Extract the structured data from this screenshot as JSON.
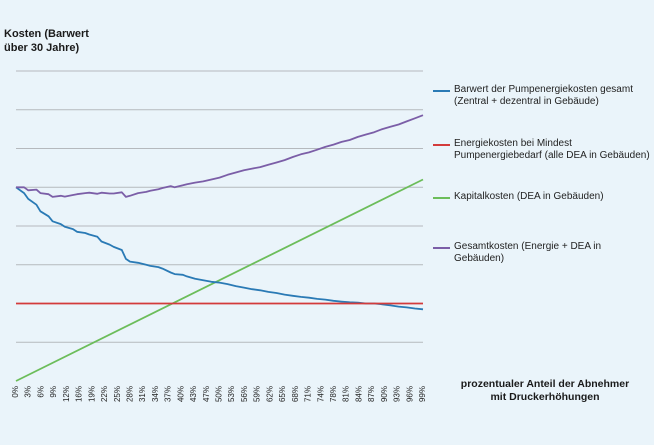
{
  "chart_data": {
    "type": "line",
    "ylabel": "Kosten (Barwert\nüber 30 Jahre)",
    "xlabel": "prozentualer Anteil der Abnehmer\nmit Druckerhöhungen",
    "xlim": [
      0,
      100
    ],
    "ylim": [
      0,
      8
    ],
    "grid": true,
    "legend_position": "right",
    "tick_labels": [
      "0%",
      "3%",
      "6%",
      "9%",
      "12%",
      "16%",
      "19%",
      "22%",
      "25%",
      "28%",
      "31%",
      "34%",
      "37%",
      "40%",
      "43%",
      "47%",
      "50%",
      "53%",
      "56%",
      "59%",
      "62%",
      "65%",
      "68%",
      "71%",
      "74%",
      "78%",
      "81%",
      "84%",
      "87%",
      "90%",
      "93%",
      "96%",
      "99%"
    ],
    "series": [
      {
        "name": "Barwert der Pumpenergiekosten gesamt\n(Zentral + dezentral in Gebäude)",
        "color": "#2a7ab5",
        "x": [
          0,
          2,
          3,
          5,
          6,
          8,
          9,
          11,
          12,
          14,
          15,
          17,
          18,
          20,
          21,
          23,
          24,
          26,
          27,
          28,
          30,
          32,
          33,
          35,
          36,
          38,
          39,
          41,
          42,
          44,
          46,
          48,
          50,
          52,
          54,
          56,
          58,
          60,
          62,
          64,
          66,
          68,
          70,
          72,
          74,
          76,
          78,
          80,
          82,
          84,
          86,
          88,
          90,
          92,
          94,
          96,
          98,
          100
        ],
        "values": [
          5.0,
          4.85,
          4.7,
          4.55,
          4.38,
          4.25,
          4.12,
          4.05,
          3.98,
          3.92,
          3.85,
          3.82,
          3.78,
          3.72,
          3.6,
          3.52,
          3.46,
          3.38,
          3.15,
          3.08,
          3.05,
          3.0,
          2.97,
          2.94,
          2.9,
          2.8,
          2.76,
          2.74,
          2.7,
          2.64,
          2.6,
          2.56,
          2.54,
          2.5,
          2.45,
          2.41,
          2.37,
          2.34,
          2.3,
          2.27,
          2.23,
          2.2,
          2.17,
          2.15,
          2.12,
          2.1,
          2.07,
          2.05,
          2.03,
          2.02,
          2.0,
          2.0,
          1.98,
          1.95,
          1.92,
          1.9,
          1.87,
          1.85
        ]
      },
      {
        "name": "Energiekosten bei Mindest\nPumpenergiebedarf (alle DEA in Gebäuden)",
        "color": "#d33b3b",
        "x": [
          0,
          100
        ],
        "values": [
          2.0,
          2.0
        ]
      },
      {
        "name": "Kapitalkosten (DEA in Gebäuden)",
        "color": "#6cbd5a",
        "x": [
          0,
          100
        ],
        "values": [
          0.0,
          5.2
        ]
      },
      {
        "name": "Gesamtkosten (Energie + DEA in Gebäuden)",
        "color": "#7b5ea7",
        "x": [
          0,
          2,
          3,
          5,
          6,
          8,
          9,
          11,
          12,
          14,
          15,
          17,
          18,
          20,
          21,
          23,
          24,
          26,
          27,
          28,
          30,
          32,
          33,
          35,
          36,
          38,
          39,
          41,
          42,
          44,
          46,
          48,
          50,
          52,
          54,
          56,
          58,
          60,
          62,
          64,
          66,
          68,
          70,
          72,
          74,
          76,
          78,
          80,
          82,
          84,
          86,
          88,
          90,
          92,
          94,
          96,
          98,
          100
        ],
        "values": [
          5.0,
          5.0,
          4.92,
          4.94,
          4.85,
          4.82,
          4.75,
          4.78,
          4.76,
          4.8,
          4.82,
          4.85,
          4.86,
          4.83,
          4.86,
          4.84,
          4.84,
          4.87,
          4.75,
          4.78,
          4.85,
          4.88,
          4.91,
          4.95,
          4.98,
          5.03,
          5.0,
          5.05,
          5.08,
          5.12,
          5.15,
          5.2,
          5.25,
          5.32,
          5.38,
          5.44,
          5.48,
          5.52,
          5.58,
          5.64,
          5.7,
          5.78,
          5.85,
          5.9,
          5.97,
          6.04,
          6.1,
          6.17,
          6.22,
          6.3,
          6.36,
          6.42,
          6.5,
          6.56,
          6.62,
          6.7,
          6.78,
          6.86
        ]
      }
    ]
  }
}
